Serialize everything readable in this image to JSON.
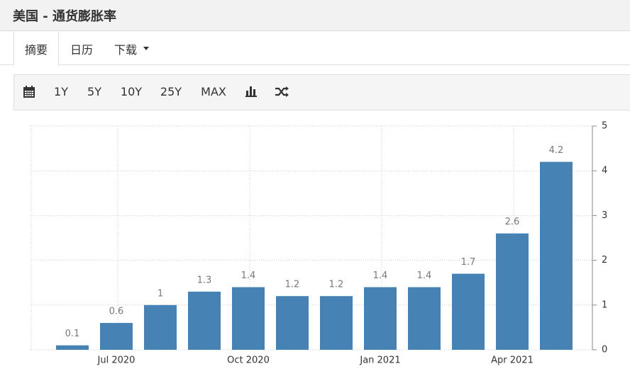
{
  "header": {
    "title": "美国 - 通货膨胀率"
  },
  "tabs": [
    "摘要",
    "日历",
    "下载"
  ],
  "toolbar": [
    "1Y",
    "5Y",
    "10Y",
    "25Y",
    "MAX"
  ],
  "chart_data": {
    "type": "bar",
    "categories": [
      null,
      "Jul 2020",
      null,
      null,
      "Oct 2020",
      null,
      null,
      "Jan 2021",
      null,
      null,
      "Apr 2021",
      null
    ],
    "values": [
      0.1,
      0.6,
      1,
      1.3,
      1.4,
      1.2,
      1.2,
      1.4,
      1.4,
      1.7,
      2.6,
      4.2
    ],
    "color": "#4682b4",
    "ylim": [
      0,
      5
    ],
    "yticks": [
      0,
      1,
      2,
      3,
      4,
      5
    ],
    "grid": true
  }
}
